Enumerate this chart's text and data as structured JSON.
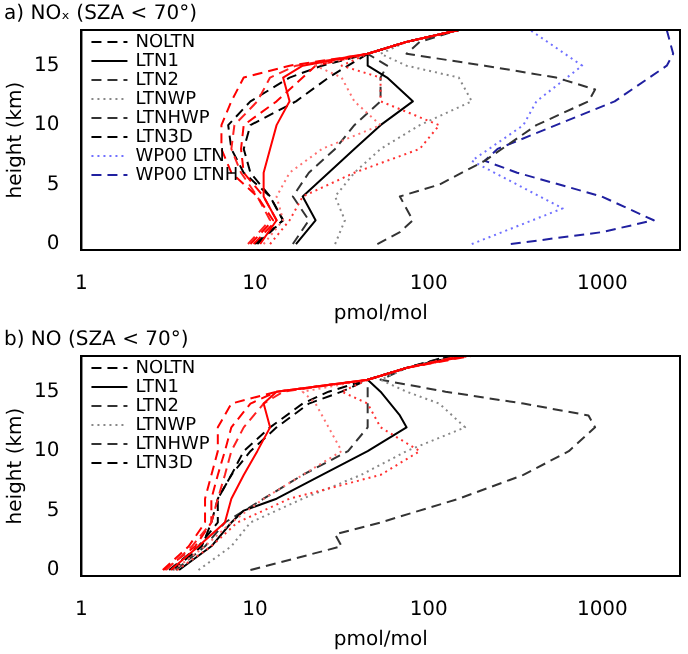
{
  "chart_data": [
    {
      "type": "line",
      "title": "a) NOₓ (SZA < 70°)",
      "xlabel": "pmol/mol",
      "ylabel": "height (km)",
      "log": "x",
      "xlim": [
        1,
        2800
      ],
      "ylim": [
        -0.5,
        18
      ],
      "xticks": [
        1,
        10,
        100,
        1000
      ],
      "yticks": [
        0,
        5,
        10,
        15
      ],
      "grid": false,
      "legend": "top left",
      "series": [
        {
          "color": "#ff0000",
          "line_style": "dashed",
          "x": [
            9.4,
            12.7,
            10.3,
            7.3,
            6.4,
            6.4,
            7.3,
            8.6,
            15.8,
            44.5,
            74.5,
            149
          ],
          "values": [
            0,
            2,
            4,
            6,
            8,
            10,
            12,
            14,
            15,
            16,
            17,
            18
          ]
        },
        {
          "color": "#ff0000",
          "line_style": "solid",
          "x": [
            10.7,
            13.3,
            11.2,
            11.2,
            12.2,
            13.3,
            15.8,
            14.5,
            18.8,
            44.5,
            74.5,
            149
          ],
          "values": [
            0,
            2,
            4,
            6,
            8,
            10,
            12,
            14,
            15,
            16,
            17,
            18
          ]
        },
        {
          "color": "#ff2020",
          "line_style": "dashed",
          "x": [
            9.1,
            12.2,
            10.3,
            8.3,
            7.3,
            7.6,
            10.3,
            12.2,
            17.2,
            44.5,
            74.5,
            149
          ],
          "values": [
            0,
            2,
            4,
            6,
            8,
            10,
            12,
            14,
            15,
            16,
            17,
            18
          ]
        },
        {
          "color": "#ff7070",
          "line_style": "dotted",
          "x": [
            11.2,
            14.5,
            13.3,
            15.8,
            24.3,
            52.8,
            37.3,
            31.5,
            22.3,
            44.5,
            74.5,
            149
          ],
          "values": [
            0,
            2,
            4,
            6,
            8,
            10,
            12,
            14,
            15,
            16,
            17,
            18
          ]
        },
        {
          "color": "#ff3030",
          "line_style": "dotted",
          "x": [
            12.2,
            15.8,
            18.8,
            37.3,
            88.8,
            115,
            52.8,
            52.8,
            31.5,
            44.5,
            74.5,
            149
          ],
          "values": [
            0,
            2,
            4,
            6,
            8,
            10,
            12,
            14,
            15,
            16,
            17,
            18
          ]
        },
        {
          "color": "#ff0000",
          "line_style": "dashed",
          "x": [
            9.8,
            13.3,
            11.2,
            8.6,
            8.3,
            8.6,
            13.3,
            18.8,
            22.3,
            44.5,
            74.5,
            149
          ],
          "values": [
            0,
            2,
            4,
            6,
            8,
            10,
            12,
            14,
            15,
            16,
            17,
            18
          ]
        },
        {
          "name": "NOLTN",
          "color": "#000000",
          "line_style": "dashed",
          "x": [
            10.3,
            14.5,
            12.2,
            8.6,
            7.3,
            7.0,
            9.4,
            15.8,
            24.3,
            44.5,
            74.5,
            149
          ],
          "values": [
            0,
            2,
            4,
            6,
            8,
            10,
            12,
            14,
            15,
            16,
            17,
            18
          ]
        },
        {
          "name": "LTN1",
          "color": "#000000",
          "line_style": "solid",
          "x": [
            17.2,
            22.3,
            18.8,
            26.5,
            37.3,
            52.8,
            81,
            57.6,
            44.5,
            44.5,
            74.5,
            149
          ],
          "values": [
            0,
            2,
            4,
            6,
            8,
            10,
            12,
            14,
            15,
            16,
            17,
            18
          ]
        },
        {
          "name": "LTN2",
          "color": "#333333",
          "line_style": "dashed",
          "x": [
            16.5,
            20.4,
            16.5,
            20.4,
            28.9,
            37.3,
            52.8,
            52.8,
            57.6,
            44.5,
            74.5,
            149
          ],
          "values": [
            0,
            2,
            4,
            6,
            8,
            10,
            12,
            14,
            15,
            16,
            17,
            18
          ]
        },
        {
          "name": "LTNWP",
          "color": "#888888",
          "line_style": "dotted",
          "x": [
            28.9,
            32.9,
            28.9,
            37.3,
            52.8,
            88.8,
            177,
            149,
            74.5,
            52.8,
            74.5,
            149
          ],
          "values": [
            0,
            2,
            4,
            6,
            8,
            10,
            12,
            14,
            15,
            16,
            17,
            18
          ]
        },
        {
          "name": "LTNHWP",
          "color": "#333333",
          "line_style": "dashed",
          "x": [
            50.6,
            68.2,
            81,
            68.2,
            115,
            210,
            417,
            832,
            908,
            541,
            210,
            74.5,
            88.8,
            149
          ],
          "values": [
            0,
            1,
            2,
            4,
            5,
            7,
            10,
            12,
            13,
            14,
            15,
            16,
            17,
            18
          ]
        },
        {
          "name": "LTN3D",
          "color": "#000000",
          "line_style": "dashed",
          "x": [
            10.0,
            14.5,
            12.2,
            9.4,
            8.6,
            9.4,
            17.2,
            26.5,
            34.3,
            44.5,
            74.5,
            149
          ],
          "values": [
            0,
            2,
            4,
            6,
            8,
            10,
            12,
            14,
            15,
            16,
            17,
            18
          ]
        },
        {
          "name": "WP00 LTN",
          "color": "#7070ff",
          "line_style": "dotted",
          "x": [
            177,
            591,
            323,
            177,
            351,
            417,
            765,
            384
          ],
          "values": [
            0,
            3,
            5,
            7,
            10,
            12,
            15,
            18
          ]
        },
        {
          "name": "WP00 LTNH",
          "color": "#2020a0",
          "line_style": "dashed",
          "x": [
            297,
            991,
            1977,
            991,
            323,
            210,
            249,
            541,
            1177,
            2349,
            2558,
            2349
          ],
          "values": [
            0,
            1,
            2,
            4,
            6,
            7,
            8,
            10,
            12,
            15,
            16,
            18
          ]
        }
      ]
    },
    {
      "type": "line",
      "title": "b) NO (SZA < 70°)",
      "xlabel": "pmol/mol",
      "ylabel": "height (km)",
      "log": "x",
      "xlim": [
        1,
        2800
      ],
      "ylim": [
        -0.5,
        18
      ],
      "xticks": [
        1,
        10,
        100,
        1000
      ],
      "yticks": [
        0,
        5,
        10,
        15
      ],
      "grid": false,
      "legend": "top left",
      "series": [
        {
          "color": "#ff0000",
          "line_style": "dashed",
          "x": [
            2.94,
            4.15,
            5.15,
            5.15,
            5.6,
            6.1,
            6.1,
            7.3,
            13.3,
            44.5,
            74.5,
            175
          ],
          "values": [
            0,
            2,
            4,
            6,
            8,
            10,
            12,
            14,
            15,
            16,
            17,
            18
          ]
        },
        {
          "color": "#ff0000",
          "line_style": "solid",
          "x": [
            3.27,
            4.72,
            6.7,
            7.3,
            8.6,
            10.3,
            12.2,
            11.2,
            13.3,
            44.5,
            74.5,
            160
          ],
          "values": [
            0,
            2,
            4,
            6,
            8,
            10,
            12,
            14,
            15,
            16,
            17,
            18
          ]
        },
        {
          "color": "#ff2020",
          "line_style": "dashed",
          "x": [
            3.07,
            4.33,
            5.6,
            6.1,
            6.7,
            7.3,
            8.6,
            11.2,
            14.5,
            44.5,
            74.5,
            150
          ],
          "values": [
            0,
            2,
            4,
            6,
            8,
            10,
            12,
            14,
            15,
            16,
            17,
            18
          ]
        },
        {
          "color": "#ff7070",
          "line_style": "dotted",
          "x": [
            3.4,
            5.15,
            7.3,
            11.2,
            18.8,
            31.5,
            26.5,
            22.3,
            18.8,
            44.5,
            74.5,
            155
          ],
          "values": [
            0,
            2,
            4,
            6,
            8,
            10,
            12,
            14,
            15,
            16,
            17,
            18
          ]
        },
        {
          "color": "#ff3030",
          "line_style": "dotted",
          "x": [
            3.55,
            5.6,
            7.9,
            15.8,
            52.8,
            88.8,
            52.8,
            44.5,
            31.5,
            44.5,
            74.5,
            170
          ],
          "values": [
            0,
            2,
            4,
            6,
            8,
            10,
            12,
            14,
            15,
            16,
            17,
            18
          ]
        },
        {
          "color": "#ff0000",
          "line_style": "dashed",
          "x": [
            3.0,
            4.52,
            5.6,
            5.6,
            6.1,
            6.7,
            7.3,
            9.4,
            13.3,
            44.5,
            74.5,
            165
          ],
          "values": [
            0,
            2,
            4,
            6,
            8,
            10,
            12,
            14,
            15,
            16,
            17,
            18
          ]
        },
        {
          "name": "NOLTN",
          "color": "#000000",
          "line_style": "dashed",
          "x": [
            3.2,
            4.72,
            6.1,
            6.1,
            7.3,
            9.4,
            13.3,
            20.4,
            31.5,
            44.5,
            74.5,
            140
          ],
          "values": [
            0,
            2,
            4,
            6,
            8,
            10,
            12,
            14,
            15,
            16,
            17,
            18
          ]
        },
        {
          "name": "LTN1",
          "color": "#000000",
          "line_style": "solid",
          "x": [
            3.65,
            5.6,
            7.3,
            8.6,
            13.3,
            24.3,
            44.5,
            74.5,
            68.2,
            52.8,
            44.5,
            74.5,
            149
          ],
          "values": [
            0,
            2,
            4,
            5,
            6,
            8,
            10,
            12,
            13,
            15,
            16,
            17,
            18
          ]
        },
        {
          "name": "LTN2",
          "color": "#333333",
          "line_style": "dashed",
          "x": [
            3.49,
            5.15,
            6.7,
            11.2,
            18.8,
            34.3,
            44.5,
            44.5,
            44.5,
            44.5,
            74.5,
            135
          ],
          "values": [
            0,
            2,
            4,
            6,
            8,
            10,
            12,
            14,
            15,
            16,
            17,
            18
          ]
        },
        {
          "name": "LTNWP",
          "color": "#888888",
          "line_style": "dotted",
          "x": [
            4.72,
            7.3,
            9.4,
            18.8,
            40.8,
            74.5,
            162,
            115,
            74.5,
            52.8,
            74.5,
            149
          ],
          "values": [
            0,
            2,
            4,
            6,
            8,
            10,
            12,
            14,
            15,
            16,
            17,
            18
          ]
        },
        {
          "name": "LTNHWP",
          "color": "#333333",
          "line_style": "dashed",
          "x": [
            9.4,
            31.5,
            28.9,
            52.8,
            149,
            351,
            641,
            908,
            832,
            351,
            125,
            52.8,
            74.5,
            149
          ],
          "values": [
            0,
            2,
            3,
            4,
            6,
            8,
            10,
            12,
            13,
            14,
            15,
            16,
            17,
            18
          ]
        },
        {
          "name": "LTN3D",
          "color": "#000000",
          "line_style": "dashed",
          "x": [
            3.34,
            4.93,
            5.6,
            6.1,
            7.3,
            8.6,
            12.2,
            18.8,
            26.5,
            44.5,
            74.5,
            130
          ],
          "values": [
            0,
            2,
            4,
            6,
            8,
            10,
            12,
            14,
            15,
            16,
            17,
            18
          ]
        }
      ]
    }
  ]
}
